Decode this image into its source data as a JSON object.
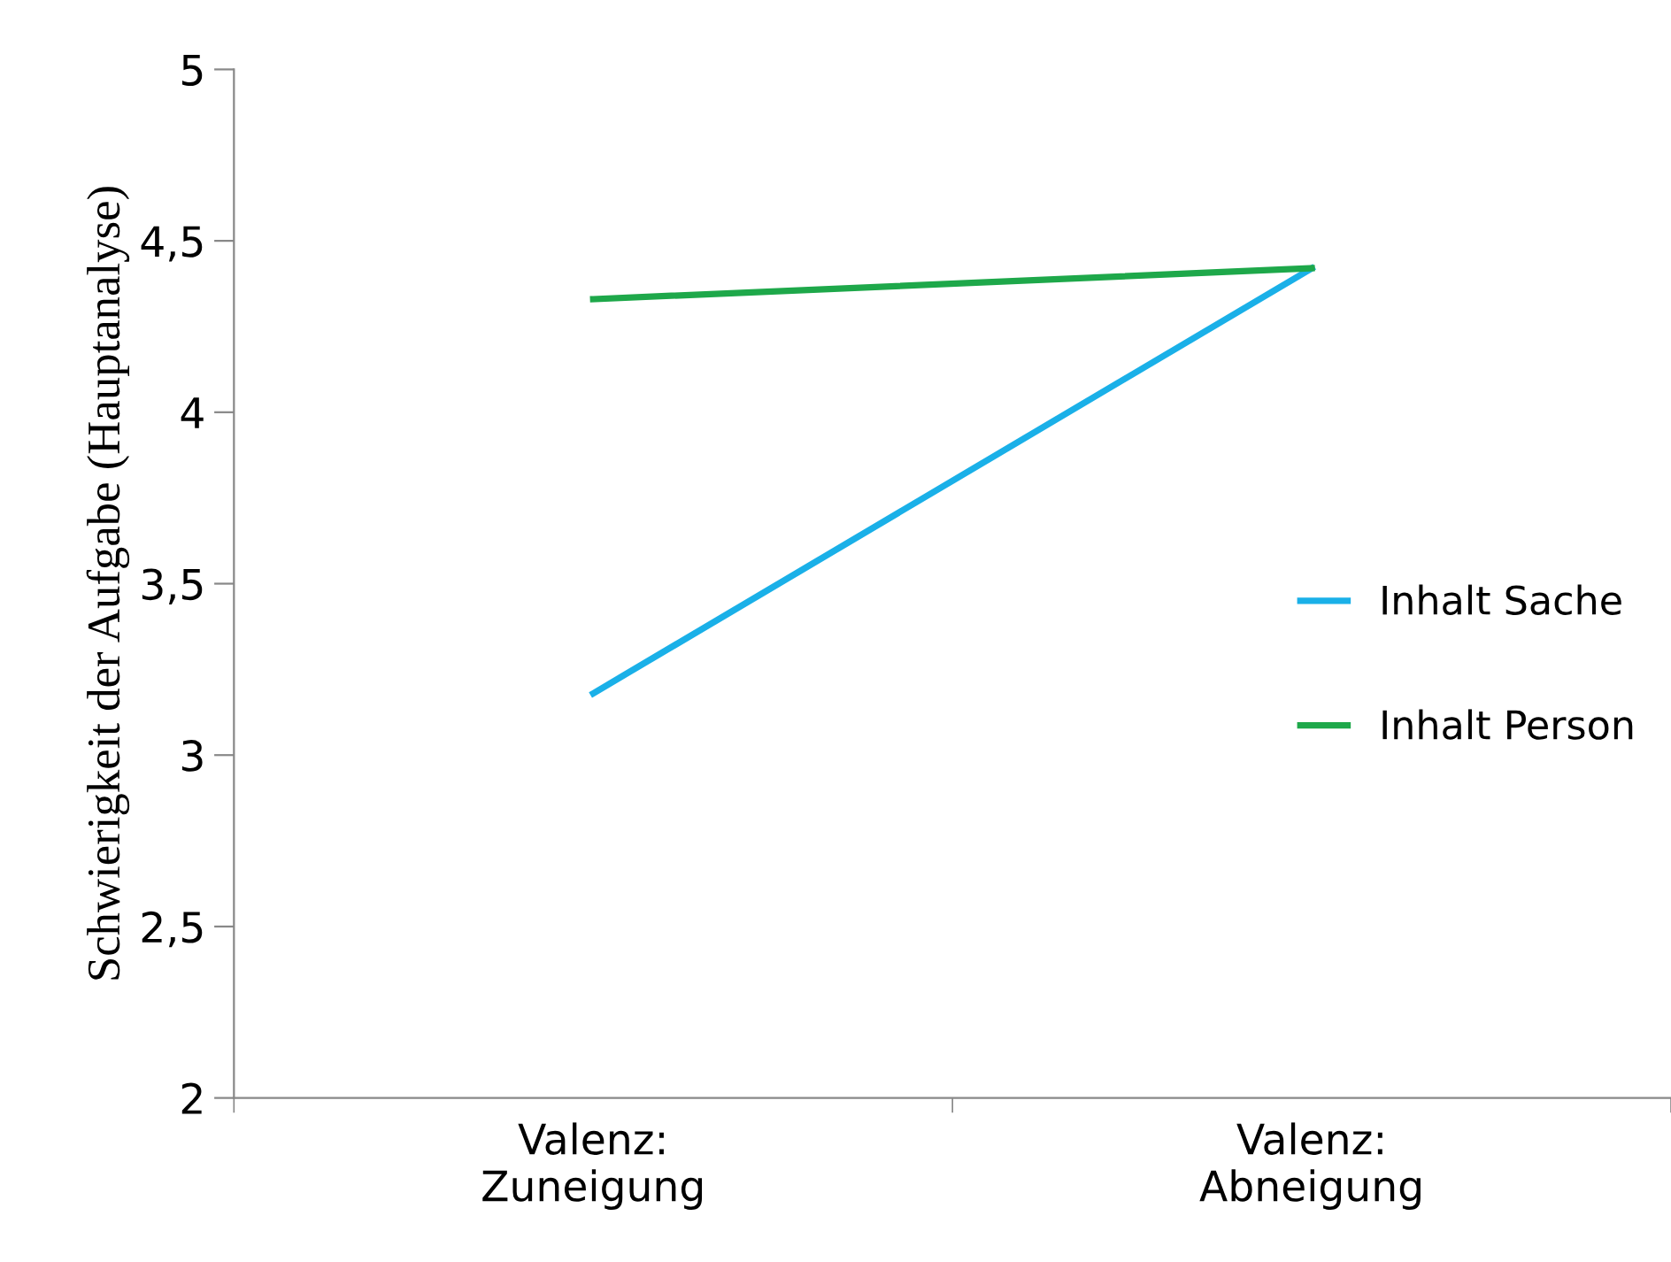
{
  "chart_data": {
    "type": "line",
    "ylabel": "Schwierigkeit der Aufgabe (Hauptanalyse)",
    "categories": [
      "Valenz:\nZuneigung",
      "Valenz:\nAbneigung"
    ],
    "series": [
      {
        "name": "Inhalt Sache",
        "color": "#1ab0e8",
        "values": [
          3.18,
          4.42
        ]
      },
      {
        "name": "Inhalt Person",
        "color": "#1ea84a",
        "values": [
          4.33,
          4.42
        ]
      }
    ],
    "ylim": [
      2,
      5
    ],
    "yticks": [
      2,
      {
        "value": 2.5,
        "label": "2,5"
      },
      3,
      {
        "value": 3.5,
        "label": "3,5"
      },
      4,
      {
        "value": 4.5,
        "label": "4,5"
      },
      5
    ],
    "grid": false,
    "legend": "right",
    "marker": "none",
    "line_style": "solid"
  }
}
